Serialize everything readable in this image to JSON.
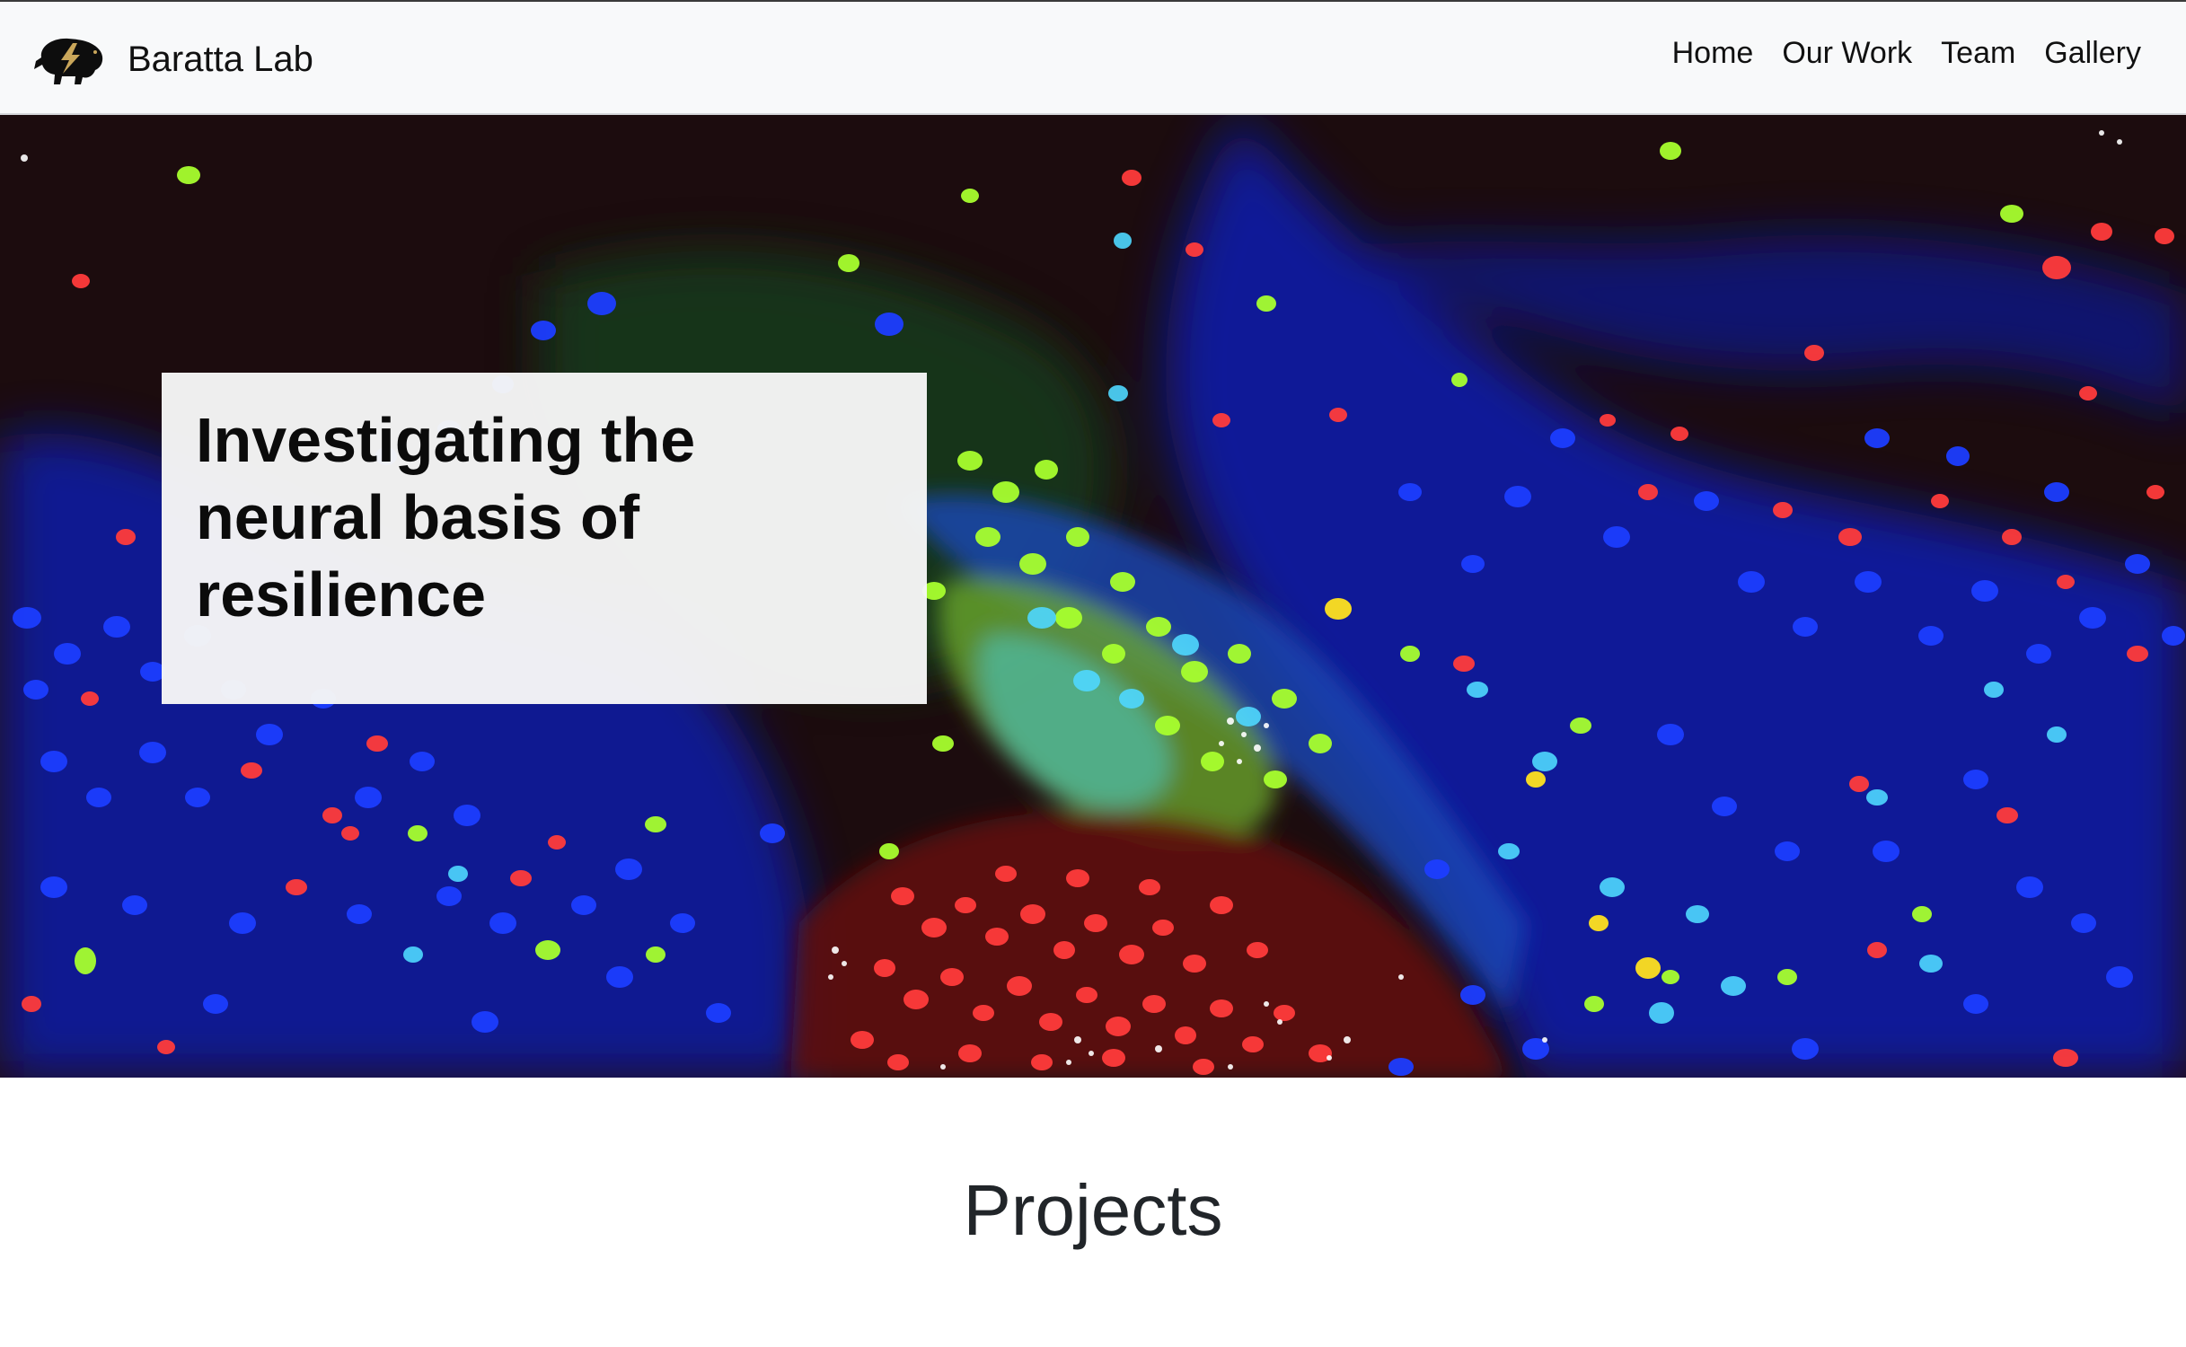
{
  "navbar": {
    "brand": "Baratta Lab",
    "logo_icon": "buffalo-logo-icon",
    "links": [
      "Home",
      "Our Work",
      "Team",
      "Gallery"
    ]
  },
  "hero": {
    "image": "fluorescent-brain-tissue-micrograph",
    "title": "Investigating the neural basis of resilience"
  },
  "section": {
    "heading": "Projects"
  },
  "colors": {
    "navbar_bg": "#f8f9fa",
    "hero_card_bg": "#f6f6f6",
    "cell_red": "#ff3a3a",
    "cell_green": "#a6ff2a",
    "cell_blue": "#1a35ff",
    "cell_cyan": "#4fd8ff"
  }
}
